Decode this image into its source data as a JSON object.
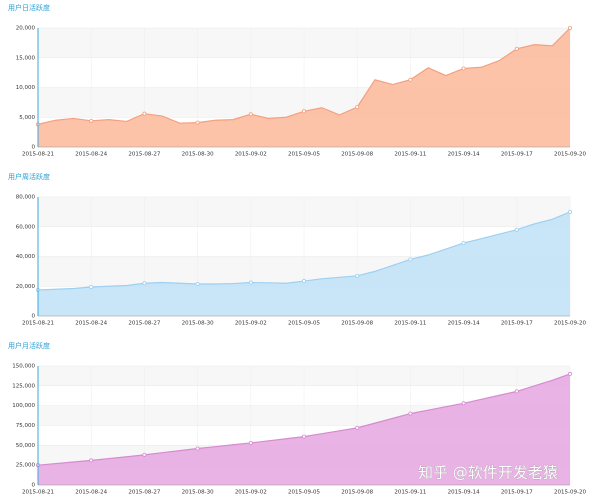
{
  "chart_data": [
    {
      "type": "area",
      "title": "用户日活跃度",
      "color": "#fbb99a",
      "line_color": "#f4a07f",
      "categories": [
        "2015-08-21",
        null,
        null,
        "2015-08-24",
        null,
        null,
        "2015-08-27",
        null,
        null,
        "2015-08-30",
        null,
        null,
        "2015-09-02",
        null,
        null,
        "2015-09-05",
        null,
        null,
        "2015-09-08",
        null,
        null,
        "2015-09-11",
        null,
        null,
        "2015-09-14",
        null,
        null,
        "2015-09-17",
        null,
        null,
        "2015-09-20"
      ],
      "values": [
        3800,
        4500,
        4800,
        4400,
        4600,
        4300,
        5600,
        5200,
        4000,
        4100,
        4500,
        4600,
        5500,
        4800,
        5000,
        6000,
        6600,
        5400,
        6700,
        11300,
        10500,
        11300,
        13300,
        12000,
        13200,
        13400,
        14500,
        16500,
        17200,
        17000,
        20000
      ],
      "ylim": [
        0,
        20000
      ],
      "yticks": [
        0,
        {
          "value": 5000,
          "label": "5,000"
        },
        {
          "value": 10000,
          "label": "10,000"
        },
        {
          "value": 15000,
          "label": "15,000"
        },
        {
          "value": 20000,
          "label": "20,000"
        }
      ],
      "grid": true
    },
    {
      "type": "area",
      "title": "用户周活跃度",
      "color": "#bfe2f8",
      "line_color": "#9dd0f1",
      "categories": [
        "2015-08-21",
        null,
        null,
        "2015-08-24",
        null,
        null,
        "2015-08-27",
        null,
        null,
        "2015-08-30",
        null,
        null,
        "2015-09-02",
        null,
        null,
        "2015-09-05",
        null,
        null,
        "2015-09-08",
        null,
        null,
        "2015-09-11",
        null,
        null,
        "2015-09-14",
        null,
        null,
        "2015-09-17",
        null,
        null,
        "2015-09-20"
      ],
      "values": [
        17500,
        18000,
        18500,
        19500,
        20000,
        20500,
        22000,
        22500,
        22000,
        21500,
        21500,
        21800,
        22500,
        22300,
        22000,
        23500,
        25000,
        26000,
        27000,
        30000,
        34000,
        38000,
        41000,
        45000,
        49000,
        52000,
        55000,
        58000,
        62000,
        65000,
        70000
      ],
      "ylim": [
        0,
        80000
      ],
      "yticks": [
        0,
        {
          "value": 20000,
          "label": "20,000"
        },
        {
          "value": 40000,
          "label": "40,000"
        },
        {
          "value": 60000,
          "label": "60,000"
        },
        {
          "value": 80000,
          "label": "80,000"
        }
      ],
      "grid": true
    },
    {
      "type": "area",
      "title": "用户月活跃度",
      "color": "#e6a6e0",
      "line_color": "#d68bd0",
      "categories": [
        "2015-08-21",
        null,
        null,
        "2015-08-24",
        null,
        null,
        "2015-08-27",
        null,
        null,
        "2015-08-30",
        null,
        null,
        "2015-09-02",
        null,
        null,
        "2015-09-05",
        null,
        null,
        "2015-09-08",
        null,
        null,
        "2015-09-11",
        null,
        null,
        "2015-09-14",
        null,
        null,
        "2015-09-17",
        null,
        null,
        "2015-09-20"
      ],
      "values": [
        25000,
        27000,
        29000,
        31000,
        33300,
        35600,
        38000,
        40700,
        43300,
        46000,
        48300,
        50700,
        53000,
        55700,
        58300,
        61000,
        64700,
        68300,
        72000,
        78000,
        84000,
        90000,
        94300,
        98700,
        103000,
        108000,
        113000,
        118000,
        125000,
        132000,
        140000
      ],
      "ylim": [
        0,
        150000
      ],
      "yticks": [
        0,
        {
          "value": 25000,
          "label": "25,000"
        },
        {
          "value": 50000,
          "label": "50,000"
        },
        {
          "value": 75000,
          "label": "75,000"
        },
        {
          "value": 100000,
          "label": "100,000"
        },
        {
          "value": 125000,
          "label": "125,000"
        },
        {
          "value": 150000,
          "label": "150,000"
        }
      ],
      "grid": true
    }
  ],
  "watermark": "知乎 @软件开发老猿"
}
